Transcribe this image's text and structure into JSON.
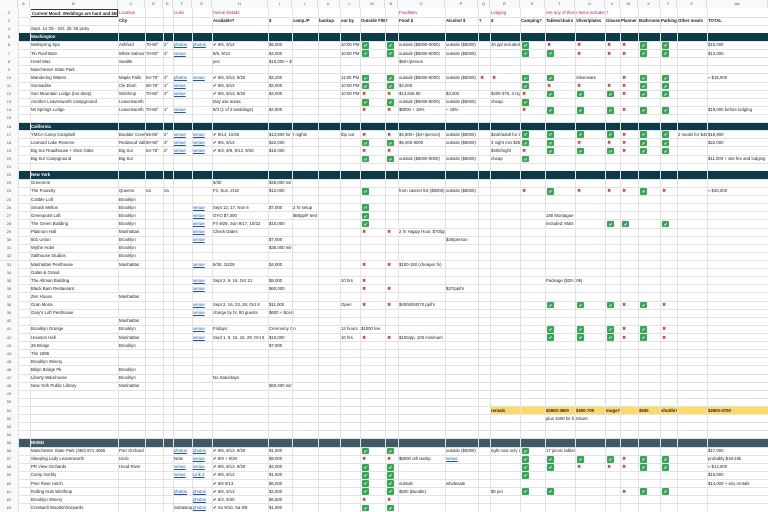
{
  "columns": [
    "A",
    "B",
    "C",
    "D",
    "E",
    "F",
    "G",
    "H",
    "I",
    "J",
    "K",
    "L",
    "M",
    "N",
    "O",
    "P",
    "Q",
    "R",
    "S",
    "T",
    "U",
    "V",
    "W",
    "X",
    "Y",
    "Z",
    "AA"
  ],
  "rows": [
    {
      "n": "2",
      "style": "top",
      "cells": {
        "B": "Current Mood: Weddings are hard and $$$",
        "C": "Location",
        "F": "Links",
        "H": "Venue Details",
        "O": "Food/Bev",
        "R": "Lodging",
        "T": "Are any of these items included?"
      }
    },
    {
      "n": "3",
      "style": "hdr",
      "cells": {
        "C": "City",
        "H": "Available?",
        "I": "$",
        "J": "camp./P",
        "K": "backup",
        "L": "out by",
        "M": "Outside F/B?",
        "O": "Food $",
        "P": "Alcohol $",
        "Q": "?",
        "R": "$",
        "S": "Camping?",
        "T": "Tables/chairs",
        "U": "Silver/plates",
        "V": "Glasses",
        "W": "Planner",
        "X": "Bathrooms",
        "Y": "Parking",
        "Z": "Other meals",
        "AA": "TOTAL"
      }
    },
    {
      "n": "4",
      "style": "note",
      "cells": {
        "B": "Sept. 14 '25 - Oct. 25 '25 picky"
      }
    },
    {
      "n": "5",
      "style": "sec",
      "cells": {
        "B": "Washington"
      }
    },
    {
      "n": "6",
      "style": "",
      "cells": {
        "B": "Wellspring Spa",
        "C": "Ashford",
        "D": "70-80°",
        "E": "2°",
        "F": "photos",
        "G": "photos",
        "H": "✔ 9/6, 9/13",
        "I": "$5,000",
        "L": "10:00 PM",
        "M": "✔",
        "N": "✔",
        "O": "outside ($5000-8000)",
        "P": "outside ($5000)",
        "R": "40 ppl included!",
        "S": "✔",
        "T": "✖",
        "U": "✖",
        "V": "✖",
        "W": "✖",
        "X": "✔",
        "Y": "✔",
        "AA": "$15,000"
      }
    },
    {
      "n": "7",
      "style": "",
      "cells": {
        "B": "Tin Roof Barn",
        "C": "White Salmon",
        "D": "70-80°",
        "E": "3°",
        "F": "venue",
        "H": "9/6, 9/13",
        "I": "$4,000",
        "L": "10:00 PM",
        "M": "✔",
        "N": "✔",
        "O": "outside ($5000-8000)",
        "P": "outside ($5000)",
        "S": "✔",
        "T": "✔",
        "U": "✖",
        "V": "✖",
        "W": "✖",
        "X": "✔",
        "Y": "✔",
        "AA": "$13,000"
      }
    },
    {
      "n": "8",
      "style": "",
      "cells": {
        "B": "Hotel Max",
        "C": "Seattle",
        "H": "yes",
        "I": "$10,000 + $",
        "O": "$60+/person"
      }
    },
    {
      "n": "9",
      "style": "",
      "cells": {
        "B": "Manchester State Park"
      }
    },
    {
      "n": "10",
      "style": "",
      "cells": {
        "B": "Wandering Waters",
        "C": "Maple Falls",
        "D": "64-78°",
        "E": "2°",
        "F": "photos",
        "G": "venue",
        "H": "✔ 9/6, 9/13, 9/20",
        "I": "$3,200",
        "L": "11:00 PM",
        "M": "✔",
        "N": "✔",
        "O": "outside ($5000-8000)",
        "P": "outside ($5000)",
        "Q": "✖",
        "R": "✖",
        "S": "✔",
        "T": "✔",
        "U": "Silverware",
        "W": "✖",
        "X": "✔",
        "Y": "✔",
        "AA": "≈ $15,000"
      }
    },
    {
      "n": "11",
      "style": "",
      "cells": {
        "B": "Sunnadise",
        "C": "Cle Elum",
        "D": "68-78°",
        "E": "1°",
        "F": "venue",
        "H": "✔ 9/6, 9/13",
        "I": "$2,000",
        "L": "10:00 PM",
        "M": "✔",
        "N": "✔",
        "O": "$4,000",
        "S": "✔",
        "T": "✖",
        "U": "✖",
        "V": "✖",
        "W": "✖",
        "X": "✔",
        "Y": "✔"
      }
    },
    {
      "n": "12",
      "style": "",
      "cells": {
        "B": "Sun Mountain Lodge (too deep)",
        "C": "Winthrop",
        "D": "70-80°",
        "E": "3°",
        "F": "venue",
        "H": "✔ 9/6, 9/13, 9/20",
        "I": "$4,000",
        "L": "10:00 PM",
        "M": "✖",
        "N": "✖",
        "O": "$13,846.80",
        "P": "$3,000",
        "R": "$200-375, 3 nights",
        "S": "✖",
        "T": "✔",
        "U": "✔",
        "V": "✔",
        "W": "✖",
        "X": "✔",
        "Y": "✔"
      }
    },
    {
      "n": "13",
      "style": "",
      "cells": {
        "B": "Another Leavenworth campground",
        "C": "Leavenworth",
        "H": "Day use areas",
        "M": "✔",
        "N": "✔",
        "O": "outside ($5000-8000)",
        "P": "outside ($5000)",
        "R": "cheap",
        "S": "✔"
      }
    },
    {
      "n": "14",
      "style": "",
      "cells": {
        "B": "Mt Springs Lodge",
        "C": "Leavenworth",
        "D": "70-80°",
        "E": "1°",
        "F": "venue",
        "H": "9/3 (1 of 3 weddings)",
        "I": "$4,800",
        "M": "✖",
        "N": "✖",
        "O": "$8000 + 18%",
        "P": "~ 18%",
        "S": "✖",
        "T": "✔",
        "U": "✔",
        "V": "✔",
        "W": "✖",
        "X": "✔",
        "Y": "✔",
        "AA": "$19,000 before lodging"
      }
    },
    {
      "n": "15",
      "style": "",
      "cells": {}
    },
    {
      "n": "16",
      "style": "sec",
      "cells": {
        "B": "California"
      }
    },
    {
      "n": "17",
      "style": "",
      "cells": {
        "B": "YMCA Camp Campbell",
        "C": "Boulder Creek",
        "D": "65-85°",
        "E": "2°",
        "F": "venue",
        "G": "venue",
        "H": "✔ 9/14, 10/26",
        "I": "$13,500 for 2 nights",
        "L": "tbp out",
        "M": "✖",
        "N": "✖",
        "O": "$4,800+ ($4+/person)",
        "P": "outside ($5000)",
        "R": "$240/adult for 2 nights",
        "S": "✔",
        "T": "✔",
        "U": "✔",
        "V": "✔",
        "W": "✖",
        "X": "✔",
        "Y": "✔",
        "Z": "2 meals for $45",
        "AA": "$19,800"
      }
    },
    {
      "n": "18",
      "style": "",
      "cells": {
        "B": "Leonard Lake Reserve",
        "C": "Redwood Valley",
        "D": "80-90°",
        "E": "3°",
        "F": "venue",
        "G": "venue",
        "H": "✔ 9/6, 9/13",
        "I": "$22,000",
        "M": "✔",
        "N": "✔",
        "O": "$5,000-8000",
        "P": "outside ($5000)",
        "R": "3 night min $25,000",
        "S": "✔",
        "T": "✔",
        "U": "✖",
        "V": "✖",
        "W": "✖",
        "X": "✔",
        "Y": "✔",
        "AA": "$22,000"
      }
    },
    {
      "n": "19",
      "style": "",
      "cells": {
        "B": "Big Sur Roadhouse + Glen Oaks",
        "C": "Big Sur",
        "D": "64-78°",
        "E": "2°",
        "F": "venue",
        "G": "venue",
        "H": "✔ 9/3, 9/9, 9/13, 9/20",
        "I": "$15,000",
        "M": "✖",
        "N": "✖",
        "R": "$400/night",
        "S": "✖",
        "T": "✔",
        "U": "✔",
        "V": "✔",
        "W": "✖",
        "X": "✔",
        "Y": "✔"
      }
    },
    {
      "n": "20",
      "style": "",
      "cells": {
        "B": "Big Sur Campground",
        "C": "Big Sur",
        "M": "✔",
        "N": "✔",
        "O": "outside ($5000-8000)",
        "P": "outside ($5000)",
        "R": "cheap",
        "S": "✔",
        "AA": "$11,000 + site fee and lodging"
      }
    },
    {
      "n": "21",
      "style": "",
      "cells": {}
    },
    {
      "n": "22",
      "style": "sec",
      "cells": {
        "B": "New York"
      }
    },
    {
      "n": "23",
      "style": "",
      "cells": {
        "B": "Greenerie",
        "H": "9/30",
        "I": "$26,000 min"
      }
    },
    {
      "n": "24",
      "style": "",
      "cells": {
        "B": "The Foundry",
        "C": "Queens",
        "D": "na",
        "E": "na",
        "H": "Fri, Sun, 2/18",
        "I": "$12,000",
        "M": "✔",
        "O": "from caterer list ($8000)",
        "P": "outside ($5000)",
        "S": "✖",
        "T": "✔",
        "U": "✖",
        "V": "✖",
        "W": "✖",
        "X": "✔",
        "Y": "✖",
        "AA": "≈ $40,000"
      }
    },
    {
      "n": "25",
      "style": "",
      "cells": {
        "B": "Cobble Loft",
        "C": "Brooklyn"
      }
    },
    {
      "n": "26",
      "style": "",
      "cells": {
        "B": "Smack Mellon",
        "C": "Brooklyn",
        "G": "venue",
        "H": "Sept 13, 17, Nov 6",
        "I": "$7,000",
        "J": "2 hr setup",
        "M": "✔"
      }
    },
    {
      "n": "27",
      "style": "",
      "cells": {
        "B": "Greenpoint Loft",
        "C": "Brooklyn",
        "G": "venue",
        "H": "OYO $7,000",
        "J": "$60pp/F tent",
        "M": "✔",
        "T": "180 Montague"
      }
    },
    {
      "n": "28",
      "style": "",
      "cells": {
        "B": "The Green Building",
        "C": "Brooklyn",
        "G": "venue",
        "H": "Fri 9/29, Sun 9/17, 10/22",
        "I": "$10,000",
        "M": "✔",
        "T": "included: Mats",
        "V": "✔",
        "W": "✔",
        "Y": "✔"
      }
    },
    {
      "n": "29",
      "style": "",
      "cells": {
        "B": "Platinum Hall",
        "C": "Manhattan",
        "G": "venue",
        "H": "Check Dates",
        "M": "✖",
        "N": "✖",
        "O": "2 hr Happy Hour, $70/pp"
      }
    },
    {
      "n": "30",
      "style": "",
      "cells": {
        "B": "501 Union",
        "C": "Brooklyn",
        "G": "venue",
        "I": "$7,000",
        "P": "$36/person"
      }
    },
    {
      "n": "31",
      "style": "",
      "cells": {
        "B": "Wythe Hotel",
        "C": "Brooklyn",
        "I": "$35,000 min"
      }
    },
    {
      "n": "32",
      "style": "",
      "cells": {
        "B": "Salthouse Studios",
        "C": "Brooklyn"
      }
    },
    {
      "n": "33",
      "style": "",
      "cells": {
        "B": "Manhattan Penthouse",
        "C": "Manhattan",
        "G": "venue",
        "H": "9/30, 10/29",
        "I": "$4,000",
        "M": "✖",
        "N": "✖",
        "O": "$100-150 (cheaper fn)"
      }
    },
    {
      "n": "34",
      "style": "",
      "cells": {
        "B": "Galas & Grand"
      }
    },
    {
      "n": "35",
      "style": "",
      "cells": {
        "B": "The Altman Building",
        "G": "venue",
        "H": "Sept 2, 9, 16, Oct 21",
        "I": "$8,000",
        "L": "10 hrs",
        "M": "✖",
        "T": "Package ($20-30k)"
      }
    },
    {
      "n": "36",
      "style": "",
      "cells": {
        "B": "Black Barn Restaurant",
        "G": "venue",
        "I": "$60,000",
        "M": "✖",
        "N": "✖",
        "P": "$37/pp/hr"
      }
    },
    {
      "n": "37",
      "style": "",
      "cells": {
        "B": "Zen House",
        "C": "Manhattan"
      }
    },
    {
      "n": "38",
      "style": "",
      "cells": {
        "B": "Gran Mona",
        "G": "venue",
        "H": "Sept 2, 16, 23, 29; Oct 8",
        "I": "$11,000",
        "L": "Open",
        "M": "✖",
        "N": "✖",
        "O": "$40/50/60/70 pp/hr",
        "T": "✔",
        "U": "✔",
        "V": "✔",
        "W": "✖",
        "X": "✔",
        "Y": "✖"
      }
    },
    {
      "n": "39",
      "style": "",
      "cells": {
        "B": "Gary's Loft Penthouse",
        "G": "venue",
        "H": "charge by hr, 80 guests",
        "I": "$600 + $cost"
      }
    },
    {
      "n": "40",
      "style": "",
      "cells": {
        "C": "Manhattan"
      }
    },
    {
      "n": "41",
      "style": "",
      "cells": {
        "B": "Brooklyn Grange",
        "C": "Brooklyn",
        "G": "venue",
        "H": "Fridays",
        "I": "Ceremony On",
        "L": "12 hours",
        "M": "$1000 fee",
        "T": "✔",
        "U": "✔",
        "V": "✔",
        "W": "✖",
        "X": "✔",
        "Y": "✖"
      }
    },
    {
      "n": "42",
      "style": "",
      "cells": {
        "B": "Houston Hall",
        "C": "Manhattan",
        "G": "venue",
        "H": "Sept 1, 8, 15, 16, 29; Oct 6",
        "I": "$10,000",
        "L": "10 hrs",
        "M": "✖",
        "N": "✖",
        "O": "$150/pp, 100 minimum",
        "T": "✔",
        "U": "✔",
        "V": "✔",
        "W": "✖",
        "X": "✔",
        "Y": "✖"
      }
    },
    {
      "n": "43",
      "style": "",
      "cells": {
        "B": "26 Bridge",
        "C": "Brooklyn",
        "I": "$7,000"
      }
    },
    {
      "n": "44",
      "style": "",
      "cells": {
        "B": "The 1896"
      }
    },
    {
      "n": "45",
      "style": "",
      "cells": {
        "B": "Brooklyn Winery"
      }
    },
    {
      "n": "46",
      "style": "",
      "cells": {
        "B": "Bklyn Bridge Pk",
        "C": "Brooklyn"
      }
    },
    {
      "n": "47",
      "style": "",
      "cells": {
        "B": "Liberty Warehouse",
        "C": "Brooklyn",
        "H": "No Saturdays"
      }
    },
    {
      "n": "48",
      "style": "",
      "cells": {
        "B": "New York Public Library",
        "C": "Manhattan",
        "I": "$60,000 min"
      }
    },
    {
      "n": "49",
      "style": "",
      "cells": {}
    },
    {
      "n": "50",
      "style": "",
      "cells": {}
    },
    {
      "n": "51",
      "style": "sum",
      "cells": {
        "R": "rentals",
        "T": "$2600-3600",
        "U": "$300-700",
        "V": "mugs?",
        "X": "$500",
        "Y": "shuttle?",
        "AA": "$2600-4700"
      }
    },
    {
      "n": "52",
      "style": "",
      "cells": {
        "T": "plus 1000 for furniture"
      }
    },
    {
      "n": "53",
      "style": "",
      "cells": {}
    },
    {
      "n": "54",
      "style": "",
      "cells": {}
    },
    {
      "n": "55",
      "style": "sec2",
      "cells": {
        "B": "NIXED"
      }
    },
    {
      "n": "56",
      "style": "",
      "cells": {
        "B": "Manchester State Park (360) 871-4065",
        "C": "Port Orchard",
        "F": "photos",
        "G": "photos",
        "H": "✔ 9/6, 9/13, 9/20",
        "I": "$1,000",
        "M": "✔",
        "N": "✔",
        "P": "outside ($5000)",
        "R": "right now only at",
        "S": "✔",
        "T": "17 picnic tables",
        "AA": "$17,000"
      }
    },
    {
      "n": "57",
      "style": "",
      "cells": {
        "B": "Sleeping Lady Leavenworth",
        "C": "Icicle",
        "F": "Note",
        "G": "venue",
        "H": "✔ 9/9 + 9/30",
        "I": "$9,000",
        "M": "✖",
        "N": "✖",
        "O": "$8000 oth tax/tip",
        "P": "venue",
        "S": "✔",
        "T": "✔",
        "U": "✔",
        "V": "✔",
        "W": "✖",
        "X": "✔",
        "Y": "✔",
        "AA": "probably $18-19k"
      }
    },
    {
      "n": "58",
      "style": "",
      "cells": {
        "B": "PR View Orchards",
        "C": "Hood River",
        "F": "venue",
        "G": "venue",
        "H": "✔ 9/6, 9/13, 9/20",
        "I": "$4,000",
        "M": "✔",
        "N": "✔",
        "S": "✔",
        "T": "✔",
        "U": "✖",
        "V": "✖",
        "W": "✖",
        "X": "✔",
        "Y": "✔",
        "AA": "≈ $14,000"
      }
    },
    {
      "n": "59",
      "style": "",
      "cells": {
        "B": "Camp Gorbly",
        "F": "venue",
        "G": "Link 2",
        "H": "✔ 9/6, 9/13",
        "I": "$1,500",
        "M": "✔",
        "N": "✔",
        "S": "✔",
        "AA": "$16,000"
      }
    },
    {
      "n": "60",
      "style": "",
      "cells": {
        "B": "Pine River ranch",
        "H": "✔ 9/6 9/13",
        "I": "$6,000",
        "M": "✔",
        "N": "✔",
        "O": "outside",
        "P": "wholesale",
        "AA": "$14,000 + any rentals"
      }
    },
    {
      "n": "61",
      "style": "",
      "cells": {
        "B": "Rolling Huls Winthrop",
        "F": "photos",
        "G": "photos",
        "H": "✔ 9/6, 9/13",
        "I": "$2,500",
        "M": "✔",
        "N": "✔",
        "O": "$500 (Bundle)",
        "R": "$0 pei",
        "S": "✔",
        "T": "✔",
        "W": "✖",
        "X": "✔",
        "Y": "✔"
      }
    },
    {
      "n": "62",
      "style": "",
      "cells": {
        "B": "Brooklyn Winery",
        "G": "photos",
        "H": "✔ 9/3, 9/30",
        "I": "$6,500",
        "M": "✖",
        "N": "✖"
      }
    },
    {
      "n": "63",
      "style": "",
      "cells": {
        "B": "Crestwell Woods/Vineyards",
        "F": "Sebastopol",
        "G": "photos",
        "H": "✔ Su 9/10, Sa 9/9",
        "I": "$1,000",
        "M": "✔",
        "N": "✔"
      }
    }
  ]
}
